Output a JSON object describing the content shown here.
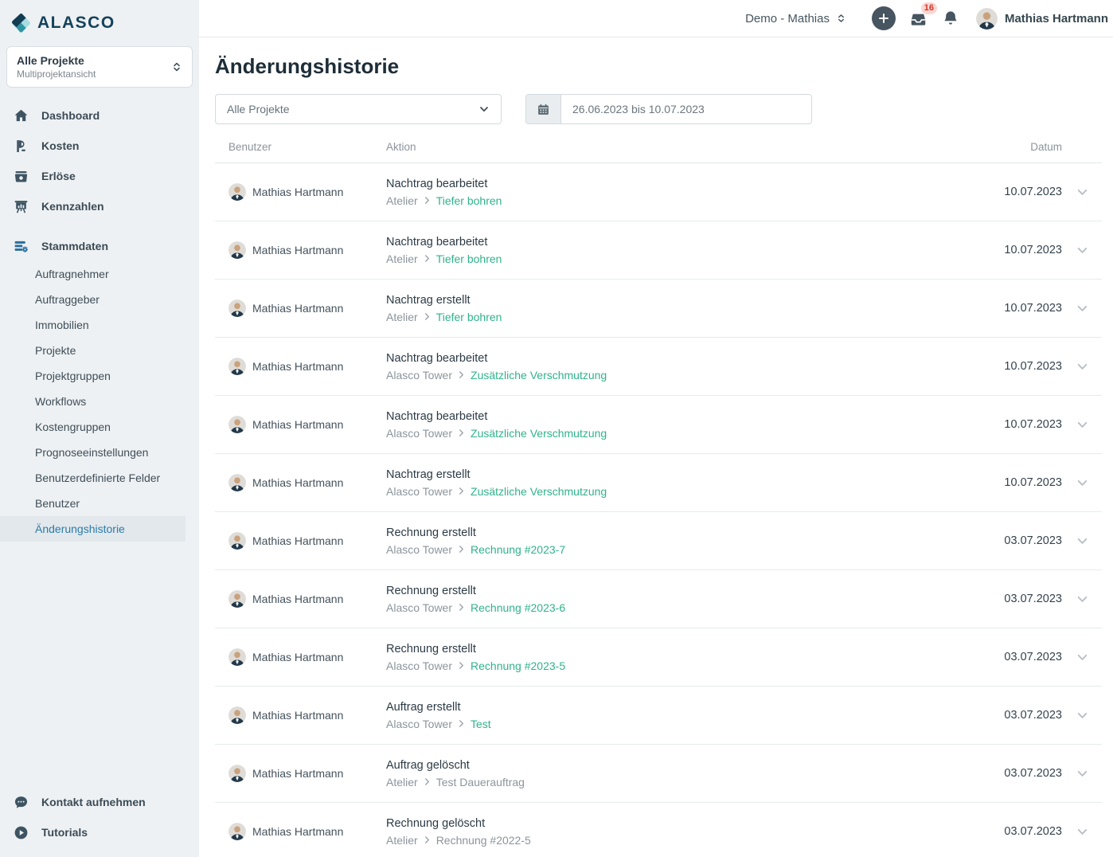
{
  "brand": {
    "name": "ALASCO"
  },
  "project_selector": {
    "title": "Alle Projekte",
    "subtitle": "Multiprojektansicht"
  },
  "sidebar": {
    "main_items": [
      {
        "label": "Dashboard",
        "icon": "dashboard-icon"
      },
      {
        "label": "Kosten",
        "icon": "costs-icon"
      },
      {
        "label": "Erlöse",
        "icon": "revenues-icon"
      },
      {
        "label": "Kennzahlen",
        "icon": "kpi-icon"
      }
    ],
    "stammdaten_label": "Stammdaten",
    "sub_items": [
      {
        "label": "Auftragnehmer",
        "active": false
      },
      {
        "label": "Auftraggeber",
        "active": false
      },
      {
        "label": "Immobilien",
        "active": false
      },
      {
        "label": "Projekte",
        "active": false
      },
      {
        "label": "Projektgruppen",
        "active": false
      },
      {
        "label": "Workflows",
        "active": false
      },
      {
        "label": "Kostengruppen",
        "active": false
      },
      {
        "label": "Prognoseeinstellungen",
        "active": false
      },
      {
        "label": "Benutzerdefinierte Felder",
        "active": false
      },
      {
        "label": "Benutzer",
        "active": false
      },
      {
        "label": "Änderungshistorie",
        "active": true
      }
    ],
    "footer_items": [
      {
        "label": "Kontakt aufnehmen",
        "icon": "chat-icon"
      },
      {
        "label": "Tutorials",
        "icon": "play-icon"
      }
    ]
  },
  "topbar": {
    "environment": "Demo - Mathias",
    "inbox_badge": "16",
    "user_name": "Mathias Hartmann"
  },
  "page": {
    "title": "Änderungshistorie",
    "filters": {
      "project_filter": "Alle Projekte",
      "date_range": "26.06.2023 bis 10.07.2023"
    }
  },
  "table": {
    "headers": {
      "user": "Benutzer",
      "action": "Aktion",
      "date": "Datum"
    },
    "rows": [
      {
        "user": "Mathias Hartmann",
        "action": "Nachtrag bearbeitet",
        "project": "Atelier",
        "target": "Tiefer bohren",
        "target_is_link": true,
        "date": "10.07.2023"
      },
      {
        "user": "Mathias Hartmann",
        "action": "Nachtrag bearbeitet",
        "project": "Atelier",
        "target": "Tiefer bohren",
        "target_is_link": true,
        "date": "10.07.2023"
      },
      {
        "user": "Mathias Hartmann",
        "action": "Nachtrag erstellt",
        "project": "Atelier",
        "target": "Tiefer bohren",
        "target_is_link": true,
        "date": "10.07.2023"
      },
      {
        "user": "Mathias Hartmann",
        "action": "Nachtrag bearbeitet",
        "project": "Alasco Tower",
        "target": "Zusätzliche Verschmutzung",
        "target_is_link": true,
        "date": "10.07.2023"
      },
      {
        "user": "Mathias Hartmann",
        "action": "Nachtrag bearbeitet",
        "project": "Alasco Tower",
        "target": "Zusätzliche Verschmutzung",
        "target_is_link": true,
        "date": "10.07.2023"
      },
      {
        "user": "Mathias Hartmann",
        "action": "Nachtrag erstellt",
        "project": "Alasco Tower",
        "target": "Zusätzliche Verschmutzung",
        "target_is_link": true,
        "date": "10.07.2023"
      },
      {
        "user": "Mathias Hartmann",
        "action": "Rechnung erstellt",
        "project": "Alasco Tower",
        "target": "Rechnung #2023-7",
        "target_is_link": true,
        "date": "03.07.2023"
      },
      {
        "user": "Mathias Hartmann",
        "action": "Rechnung erstellt",
        "project": "Alasco Tower",
        "target": "Rechnung #2023-6",
        "target_is_link": true,
        "date": "03.07.2023"
      },
      {
        "user": "Mathias Hartmann",
        "action": "Rechnung erstellt",
        "project": "Alasco Tower",
        "target": "Rechnung #2023-5",
        "target_is_link": true,
        "date": "03.07.2023"
      },
      {
        "user": "Mathias Hartmann",
        "action": "Auftrag erstellt",
        "project": "Alasco Tower",
        "target": "Test",
        "target_is_link": true,
        "date": "03.07.2023"
      },
      {
        "user": "Mathias Hartmann",
        "action": "Auftrag gelöscht",
        "project": "Atelier",
        "target": "Test Dauerauftrag",
        "target_is_link": false,
        "date": "03.07.2023"
      },
      {
        "user": "Mathias Hartmann",
        "action": "Rechnung gelöscht",
        "project": "Atelier",
        "target": "Rechnung #2022-5",
        "target_is_link": false,
        "date": "03.07.2023"
      }
    ]
  },
  "colors": {
    "link_teal": "#2fb38b",
    "active_blue": "#2b7ca9",
    "badge_red": "#e0301e",
    "icon_slate": "#46555f",
    "sidebar_bg": "#eef1f3"
  }
}
